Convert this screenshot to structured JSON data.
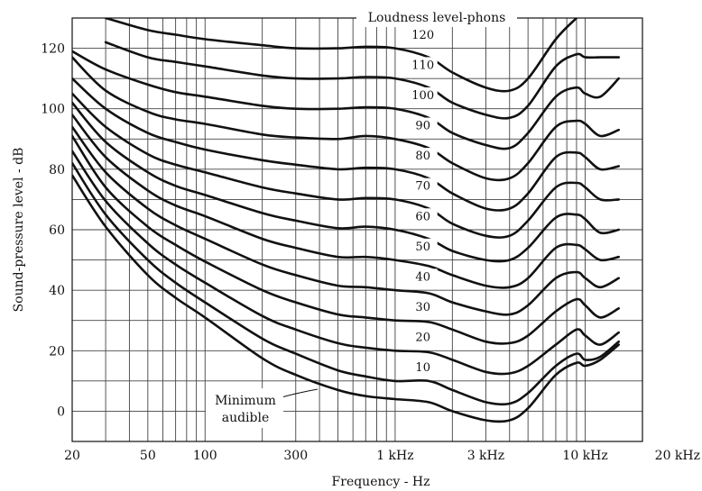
{
  "chart_data": {
    "type": "line",
    "title": "Loudness level-phons",
    "xlabel": "Frequency - Hz",
    "ylabel": "Sound-pressure level - dB",
    "xscale": "log",
    "xlim": [
      20,
      20000
    ],
    "ylim": [
      -10,
      130
    ],
    "grid": true,
    "x_ticks": [
      {
        "value": 20,
        "label": "20"
      },
      {
        "value": 50,
        "label": "50"
      },
      {
        "value": 100,
        "label": "100"
      },
      {
        "value": 300,
        "label": "300"
      },
      {
        "value": 1000,
        "label": "1 kHz"
      },
      {
        "value": 3000,
        "label": "3 kHz"
      },
      {
        "value": 10000,
        "label": "10 kHz"
      },
      {
        "value": 20000,
        "label": "20 kHz"
      }
    ],
    "y_ticks": [
      0,
      20,
      40,
      60,
      80,
      100,
      120
    ],
    "x": [
      20,
      30,
      50,
      70,
      100,
      200,
      300,
      500,
      700,
      1000,
      1500,
      2000,
      3000,
      4000,
      5000,
      7000,
      9000,
      10000,
      12000,
      15000
    ],
    "series": [
      {
        "name": "120",
        "values": [
          null,
          130,
          126,
          124.5,
          123,
          121,
          120,
          120,
          120.5,
          120,
          117,
          112,
          107,
          106,
          110,
          123,
          130,
          null,
          null,
          null
        ]
      },
      {
        "name": "110",
        "values": [
          null,
          122,
          117,
          115.5,
          114,
          111,
          110,
          110,
          110.5,
          110,
          107,
          102,
          98,
          97,
          101,
          114,
          118,
          117,
          117,
          117
        ]
      },
      {
        "name": "100",
        "values": [
          119,
          113,
          108,
          105.5,
          104,
          101,
          100,
          100,
          100.5,
          100,
          97,
          92,
          88,
          87,
          92,
          104,
          107,
          105,
          104,
          110
        ]
      },
      {
        "name": "90",
        "values": [
          117,
          106,
          99,
          96.5,
          95,
          91.5,
          90.5,
          90,
          91,
          90,
          87,
          82,
          77,
          77,
          82,
          94,
          96,
          95,
          91,
          93
        ]
      },
      {
        "name": "80",
        "values": [
          110,
          100,
          92,
          89,
          86.5,
          83,
          81.5,
          80,
          80.5,
          80,
          77,
          72,
          67,
          67,
          72,
          84,
          85.5,
          84,
          80,
          81
        ]
      },
      {
        "name": "70",
        "values": [
          105,
          94,
          85,
          81.5,
          79,
          74,
          72,
          70,
          70.5,
          70,
          67,
          62,
          58,
          58,
          63,
          74,
          75.5,
          74,
          70,
          70
        ]
      },
      {
        "name": "60",
        "values": [
          102,
          89,
          79,
          74.5,
          71.5,
          65.5,
          63,
          60.5,
          61,
          60,
          57,
          53,
          50,
          50,
          54,
          64,
          65,
          63.5,
          59,
          60
        ]
      },
      {
        "name": "50",
        "values": [
          98,
          84,
          73,
          68,
          64.5,
          57,
          54,
          51,
          51,
          50,
          48,
          45,
          41.5,
          41,
          44,
          54,
          55,
          53.5,
          50,
          51
        ]
      },
      {
        "name": "40",
        "values": [
          94,
          79,
          67,
          61.5,
          57,
          48.5,
          45,
          41.5,
          41,
          40,
          39,
          36,
          33,
          32,
          35,
          44,
          46,
          44,
          41,
          44
        ]
      },
      {
        "name": "30",
        "values": [
          91,
          74,
          61,
          55,
          49.5,
          40,
          36,
          32,
          31,
          30,
          29.5,
          27,
          23,
          22.5,
          25,
          33,
          37,
          35,
          31,
          34
        ]
      },
      {
        "name": "20",
        "values": [
          86,
          69.5,
          55.5,
          48.5,
          42.5,
          31.5,
          27,
          22.5,
          21,
          20,
          19.5,
          17,
          13,
          12.5,
          15,
          22,
          27,
          25,
          22,
          26
        ]
      },
      {
        "name": "10",
        "values": [
          82,
          65,
          50,
          42.5,
          36,
          24,
          19,
          13.5,
          11.5,
          10,
          10,
          7,
          3,
          2.5,
          6,
          15,
          19,
          17,
          18,
          23
        ]
      },
      {
        "name": "Minimum audible",
        "values": [
          78,
          61,
          45,
          37.5,
          31,
          17.5,
          12,
          7,
          5,
          4,
          3,
          0,
          -3,
          -3,
          1,
          12,
          16,
          15,
          17,
          22
        ]
      }
    ],
    "annotations": [
      "Minimum",
      "audible"
    ]
  }
}
